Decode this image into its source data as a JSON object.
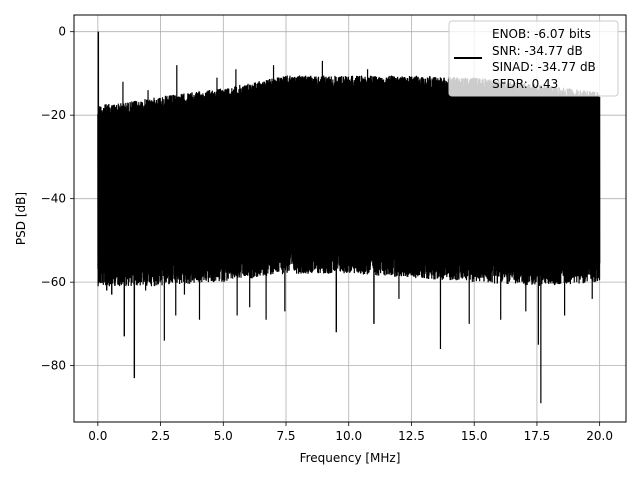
{
  "chart_data": {
    "type": "line",
    "xlabel": "Frequency [MHz]",
    "ylabel": "PSD [dB]",
    "xlim": [
      -0.95,
      21.05
    ],
    "ylim": [
      -93.5,
      4.0
    ],
    "xticks": [
      0.0,
      2.5,
      5.0,
      7.5,
      10.0,
      12.5,
      15.0,
      17.5,
      20.0
    ],
    "xtick_labels": [
      "0.0",
      "2.5",
      "5.0",
      "7.5",
      "10.0",
      "12.5",
      "15.0",
      "17.5",
      "20.0"
    ],
    "yticks": [
      0,
      -20,
      -40,
      -60,
      -80
    ],
    "ytick_labels": [
      "0",
      "−20",
      "−40",
      "−60",
      "−80"
    ],
    "grid": true,
    "legend_position": "top-right",
    "line_color": "#000000",
    "series": [
      {
        "name": "ENOB: -6.07 bits\nSNR: -34.77 dB\nSINAD: -34.77 dB\nSFDR: 0.43",
        "legend_lines": [
          "ENOB: -6.07 bits",
          "SNR: -34.77 dB",
          "SINAD: -34.77 dB",
          "SFDR: 0.43"
        ],
        "frequency_range_mhz": [
          0.0,
          20.0
        ],
        "peak": {
          "x": 0.02,
          "y": 0.0
        },
        "upper_envelope": [
          [
            0.0,
            -19
          ],
          [
            1.0,
            -18.5
          ],
          [
            2.5,
            -17
          ],
          [
            5.0,
            -15
          ],
          [
            7.5,
            -12
          ],
          [
            10.0,
            -12
          ],
          [
            12.5,
            -12
          ],
          [
            15.0,
            -12.5
          ],
          [
            17.5,
            -14
          ],
          [
            20.0,
            -16
          ]
        ],
        "lower_envelope": [
          [
            0.0,
            -56
          ],
          [
            2.5,
            -56
          ],
          [
            5.0,
            -55
          ],
          [
            7.5,
            -53
          ],
          [
            10.0,
            -53
          ],
          [
            12.5,
            -54
          ],
          [
            15.0,
            -55
          ],
          [
            17.5,
            -56
          ],
          [
            20.0,
            -55
          ]
        ],
        "spurs_up": [
          [
            1.0,
            -12
          ],
          [
            2.0,
            -14
          ],
          [
            3.15,
            -8
          ],
          [
            4.75,
            -11
          ],
          [
            5.5,
            -9
          ],
          [
            7.0,
            -8
          ],
          [
            8.0,
            -11.5
          ],
          [
            8.95,
            -7
          ],
          [
            10.75,
            -9
          ],
          [
            11.5,
            -11
          ],
          [
            12.25,
            -12
          ],
          [
            13.25,
            -11.5
          ],
          [
            15.0,
            -11
          ]
        ],
        "spurs_down": [
          [
            0.35,
            -62
          ],
          [
            0.55,
            -63
          ],
          [
            1.05,
            -73
          ],
          [
            1.45,
            -83
          ],
          [
            1.9,
            -62
          ],
          [
            2.65,
            -74
          ],
          [
            3.1,
            -68
          ],
          [
            3.45,
            -63
          ],
          [
            4.05,
            -69
          ],
          [
            5.55,
            -68
          ],
          [
            6.05,
            -66
          ],
          [
            6.7,
            -69
          ],
          [
            7.45,
            -67
          ],
          [
            9.5,
            -72
          ],
          [
            11.0,
            -70
          ],
          [
            12.0,
            -64
          ],
          [
            13.65,
            -76
          ],
          [
            14.8,
            -70
          ],
          [
            16.05,
            -69
          ],
          [
            17.05,
            -67
          ],
          [
            17.55,
            -75
          ],
          [
            17.65,
            -89
          ],
          [
            18.6,
            -68
          ],
          [
            19.7,
            -64
          ]
        ]
      }
    ]
  }
}
